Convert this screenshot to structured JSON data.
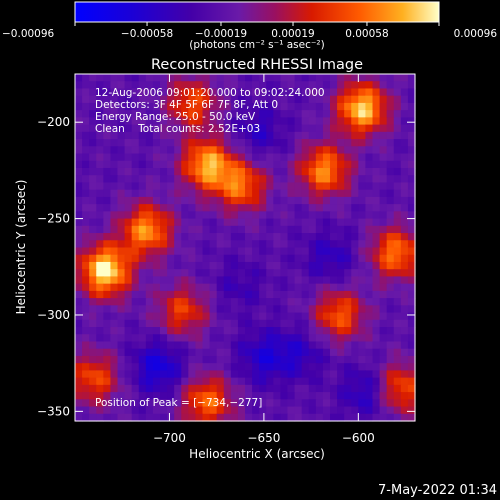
{
  "chart_data": {
    "type": "heatmap",
    "title": "Reconstructed RHESSI Image",
    "xlabel": "Heliocentric X (arcsec)",
    "ylabel": "Heliocentric Y (arcsec)",
    "xlim": [
      -750,
      -570
    ],
    "ylim": [
      -355,
      -175
    ],
    "xticks": [
      -700,
      -650,
      -600
    ],
    "yticks": [
      -350,
      -300,
      -250,
      -200
    ],
    "xtick_labels": [
      "−700",
      "−650",
      "−600"
    ],
    "ytick_labels": [
      "−350",
      "−300",
      "−250",
      "−200"
    ],
    "colorbar": {
      "min": -0.00096,
      "max": 0.00096,
      "ticks": [
        -0.00096,
        -0.00058,
        -0.00019,
        0.00019,
        0.00058,
        0.00096
      ],
      "tick_labels": [
        "−0.00096",
        "−0.00058",
        "−0.00019",
        "0.00019",
        "0.00058",
        "0.00096"
      ],
      "unit": "(photons cm⁻² s⁻¹ asec⁻²)"
    },
    "annotations": [
      "12-Aug-2006 09:01:20.000 to 09:02:24.000",
      "Detectors: 3F 4F 5F 6F 7F 8F, Att 0",
      "Energy Range: 25.0 - 50.0 keV",
      "Clean    Total counts: 2.52E+03"
    ],
    "peak_label": "Position of Peak = [−734,−277]",
    "peak": [
      -734,
      -277
    ],
    "bright_regions": [
      {
        "x": -734,
        "y": -277,
        "value": 0.00096
      },
      {
        "x": -680,
        "y": -222,
        "value": 0.00075
      },
      {
        "x": -712,
        "y": -256,
        "value": 0.00068
      },
      {
        "x": -598,
        "y": -193,
        "value": 0.00085
      },
      {
        "x": -618,
        "y": -225,
        "value": 0.00065
      },
      {
        "x": -662,
        "y": -233,
        "value": 0.00055
      },
      {
        "x": -580,
        "y": -268,
        "value": 0.0006
      },
      {
        "x": -693,
        "y": -298,
        "value": 0.0004
      },
      {
        "x": -680,
        "y": -345,
        "value": 0.00055
      },
      {
        "x": -610,
        "y": -300,
        "value": 0.0005
      },
      {
        "x": -578,
        "y": -338,
        "value": 0.0005
      },
      {
        "x": -740,
        "y": -333,
        "value": 0.00045
      },
      {
        "x": -688,
        "y": -190,
        "value": 0.00045
      }
    ],
    "dark_regions": [
      {
        "x": -653,
        "y": -205,
        "value": -0.0005
      },
      {
        "x": -706,
        "y": -327,
        "value": -0.0007
      },
      {
        "x": -650,
        "y": -322,
        "value": -0.0006
      },
      {
        "x": -663,
        "y": -285,
        "value": -0.0004
      },
      {
        "x": -615,
        "y": -270,
        "value": -0.0005
      },
      {
        "x": -595,
        "y": -340,
        "value": -0.0006
      },
      {
        "x": -631,
        "y": -320,
        "value": -0.0005
      }
    ]
  },
  "footer": {
    "timestamp": "7-May-2022 01:34"
  }
}
